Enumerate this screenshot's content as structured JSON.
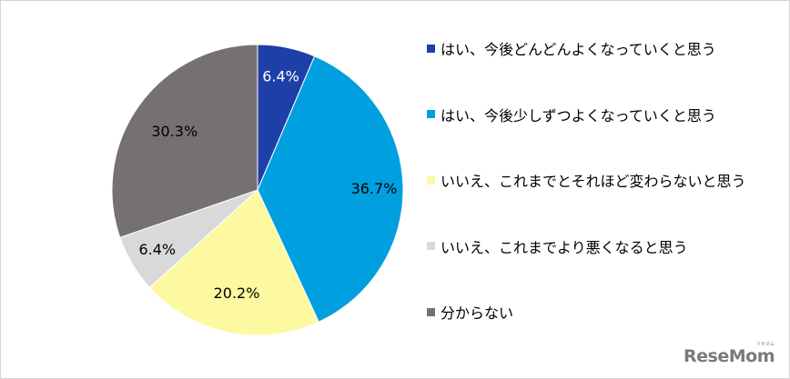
{
  "chart_data": {
    "type": "pie",
    "slices": [
      {
        "label": "はい、今後どんどんよくなっていくと思う",
        "value": 6.4,
        "display": "6.4%",
        "color": "#1f3fa8"
      },
      {
        "label": "はい、今後少しずつよくなっていくと思う",
        "value": 36.7,
        "display": "36.7%",
        "color": "#009fe0"
      },
      {
        "label": "いいえ、これまでとそれほど変わらないと思う",
        "value": 20.2,
        "display": "20.2%",
        "color": "#fcf9a0"
      },
      {
        "label": "いいえ、これまでより悪くなると思う",
        "value": 6.4,
        "display": "6.4%",
        "color": "#d9d9d9"
      },
      {
        "label": "分からない",
        "value": 30.3,
        "display": "30.3%",
        "color": "#757171"
      }
    ],
    "legend_position": "right"
  },
  "watermark": {
    "text": "ReseMom",
    "ruby": "リセマム"
  }
}
